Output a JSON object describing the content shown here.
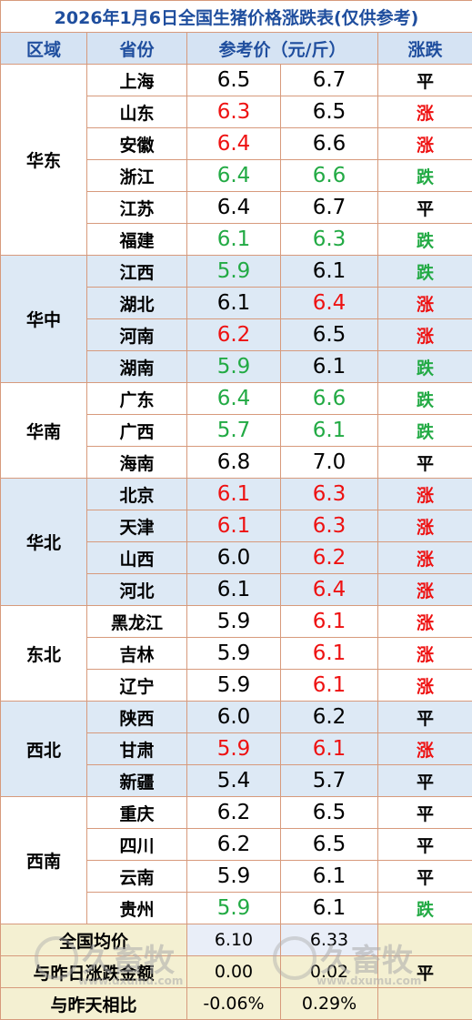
{
  "title": "2026年1月6日全国生猪价格涨跌表(仅供参考)",
  "headers": {
    "region": "区域",
    "province": "省份",
    "price": "参考价（元/斤）",
    "trend": "涨跌"
  },
  "colors": {
    "up": "#ee1111",
    "down": "#22aa44",
    "flat": "#000000",
    "header_text": "#1f4e9e"
  },
  "groups": [
    {
      "region": "华东",
      "rows": [
        {
          "province": "上海",
          "prev": "6.5",
          "prev_color": "black",
          "cur": "6.7",
          "cur_color": "black",
          "trend": "平",
          "trend_color": "black"
        },
        {
          "province": "山东",
          "prev": "6.3",
          "prev_color": "red",
          "cur": "6.5",
          "cur_color": "black",
          "trend": "涨",
          "trend_color": "red"
        },
        {
          "province": "安徽",
          "prev": "6.4",
          "prev_color": "red",
          "cur": "6.6",
          "cur_color": "black",
          "trend": "涨",
          "trend_color": "red"
        },
        {
          "province": "浙江",
          "prev": "6.4",
          "prev_color": "green",
          "cur": "6.6",
          "cur_color": "green",
          "trend": "跌",
          "trend_color": "green"
        },
        {
          "province": "江苏",
          "prev": "6.4",
          "prev_color": "black",
          "cur": "6.7",
          "cur_color": "black",
          "trend": "平",
          "trend_color": "black"
        },
        {
          "province": "福建",
          "prev": "6.1",
          "prev_color": "green",
          "cur": "6.3",
          "cur_color": "green",
          "trend": "跌",
          "trend_color": "green"
        }
      ]
    },
    {
      "region": "华中",
      "rows": [
        {
          "province": "江西",
          "prev": "5.9",
          "prev_color": "green",
          "cur": "6.1",
          "cur_color": "black",
          "trend": "跌",
          "trend_color": "green"
        },
        {
          "province": "湖北",
          "prev": "6.1",
          "prev_color": "black",
          "cur": "6.4",
          "cur_color": "red",
          "trend": "涨",
          "trend_color": "red"
        },
        {
          "province": "河南",
          "prev": "6.2",
          "prev_color": "red",
          "cur": "6.5",
          "cur_color": "black",
          "trend": "涨",
          "trend_color": "red"
        },
        {
          "province": "湖南",
          "prev": "5.9",
          "prev_color": "green",
          "cur": "6.1",
          "cur_color": "black",
          "trend": "跌",
          "trend_color": "green"
        }
      ]
    },
    {
      "region": "华南",
      "rows": [
        {
          "province": "广东",
          "prev": "6.4",
          "prev_color": "green",
          "cur": "6.6",
          "cur_color": "green",
          "trend": "跌",
          "trend_color": "green"
        },
        {
          "province": "广西",
          "prev": "5.7",
          "prev_color": "green",
          "cur": "6.1",
          "cur_color": "green",
          "trend": "跌",
          "trend_color": "green"
        },
        {
          "province": "海南",
          "prev": "6.8",
          "prev_color": "black",
          "cur": "7.0",
          "cur_color": "black",
          "trend": "平",
          "trend_color": "black"
        }
      ]
    },
    {
      "region": "华北",
      "rows": [
        {
          "province": "北京",
          "prev": "6.1",
          "prev_color": "red",
          "cur": "6.3",
          "cur_color": "red",
          "trend": "涨",
          "trend_color": "red"
        },
        {
          "province": "天津",
          "prev": "6.1",
          "prev_color": "red",
          "cur": "6.3",
          "cur_color": "red",
          "trend": "涨",
          "trend_color": "red"
        },
        {
          "province": "山西",
          "prev": "6.0",
          "prev_color": "black",
          "cur": "6.2",
          "cur_color": "red",
          "trend": "涨",
          "trend_color": "red"
        },
        {
          "province": "河北",
          "prev": "6.1",
          "prev_color": "black",
          "cur": "6.4",
          "cur_color": "red",
          "trend": "涨",
          "trend_color": "red"
        }
      ]
    },
    {
      "region": "东北",
      "rows": [
        {
          "province": "黑龙江",
          "prev": "5.9",
          "prev_color": "black",
          "cur": "6.1",
          "cur_color": "red",
          "trend": "涨",
          "trend_color": "red"
        },
        {
          "province": "吉林",
          "prev": "5.9",
          "prev_color": "black",
          "cur": "6.1",
          "cur_color": "red",
          "trend": "涨",
          "trend_color": "red"
        },
        {
          "province": "辽宁",
          "prev": "5.9",
          "prev_color": "black",
          "cur": "6.1",
          "cur_color": "red",
          "trend": "涨",
          "trend_color": "red"
        }
      ]
    },
    {
      "region": "西北",
      "rows": [
        {
          "province": "陕西",
          "prev": "6.0",
          "prev_color": "black",
          "cur": "6.2",
          "cur_color": "black",
          "trend": "平",
          "trend_color": "black"
        },
        {
          "province": "甘肃",
          "prev": "5.9",
          "prev_color": "red",
          "cur": "6.1",
          "cur_color": "red",
          "trend": "涨",
          "trend_color": "red"
        },
        {
          "province": "新疆",
          "prev": "5.4",
          "prev_color": "black",
          "cur": "5.7",
          "cur_color": "black",
          "trend": "平",
          "trend_color": "black"
        }
      ]
    },
    {
      "region": "西南",
      "rows": [
        {
          "province": "重庆",
          "prev": "6.2",
          "prev_color": "black",
          "cur": "6.5",
          "cur_color": "black",
          "trend": "平",
          "trend_color": "black"
        },
        {
          "province": "四川",
          "prev": "6.2",
          "prev_color": "black",
          "cur": "6.5",
          "cur_color": "black",
          "trend": "平",
          "trend_color": "black"
        },
        {
          "province": "云南",
          "prev": "5.9",
          "prev_color": "black",
          "cur": "6.1",
          "cur_color": "black",
          "trend": "平",
          "trend_color": "black"
        },
        {
          "province": "贵州",
          "prev": "5.9",
          "prev_color": "green",
          "cur": "6.1",
          "cur_color": "black",
          "trend": "跌",
          "trend_color": "green"
        }
      ]
    }
  ],
  "summary": {
    "avg_label": "全国均价",
    "avg_prev": "6.10",
    "avg_cur": "6.33",
    "change_label": "与昨日涨跌金额",
    "change_prev": "0.00",
    "change_cur": "0.02",
    "change_trend": "平",
    "pct_label": "与昨天相比",
    "pct_prev": "-0.06%",
    "pct_cur": "0.29%"
  },
  "watermark": {
    "text": "久畜牧",
    "url": "www.dxumu.com"
  }
}
